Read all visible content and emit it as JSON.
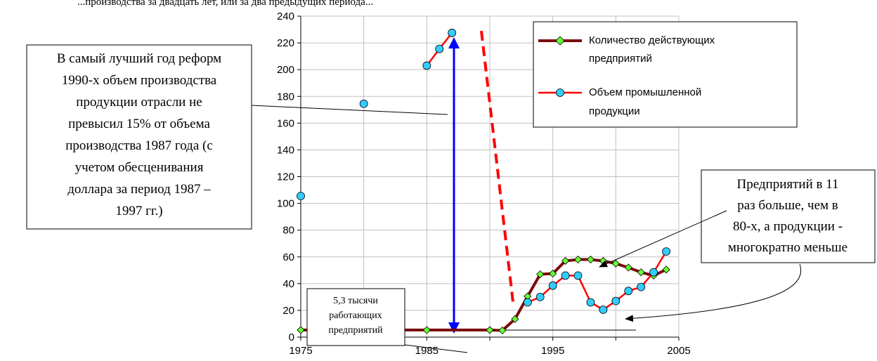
{
  "top_text": "...производства за двадцать лет, или за два предыдущих периода...",
  "chart_data": {
    "type": "line",
    "xlim": [
      1975,
      2005
    ],
    "ylim": [
      0,
      240
    ],
    "x_ticks": [
      1975,
      1985,
      1995,
      2005
    ],
    "y_ticks": [
      0,
      20,
      40,
      60,
      80,
      100,
      120,
      140,
      160,
      180,
      200,
      220,
      240
    ],
    "grid": true,
    "legend_position": "top-right",
    "series": [
      {
        "name": "Количество действующих предприятий",
        "color": "#7b0b0b",
        "marker": "diamond",
        "marker_color": "#66ff33",
        "x": [
          1975,
          1980,
          1985,
          1990,
          1991,
          1992,
          1993,
          1994,
          1995,
          1996,
          1997,
          1998,
          1999,
          2000,
          2001,
          2002,
          2003,
          2004
        ],
        "y": [
          5.3,
          5.3,
          5.3,
          5.3,
          5,
          13.5,
          30.5,
          47,
          47.5,
          57,
          58,
          58,
          57,
          55,
          52,
          48.5,
          46,
          50.5
        ]
      },
      {
        "name": "Объем промышленной продукции",
        "color": "#ff0000",
        "marker": "circle",
        "marker_color": "#33ccff",
        "x": [
          1975,
          1980,
          1985,
          1986,
          1987,
          1993,
          1994,
          1995,
          1996,
          1997,
          1998,
          1999,
          2000,
          2001,
          2002,
          2003,
          2004
        ],
        "y": [
          105.5,
          174.5,
          203,
          215.5,
          227.5,
          26,
          30,
          38.5,
          46,
          46,
          26,
          20.5,
          27,
          34.5,
          37.5,
          48.5,
          64
        ]
      }
    ]
  },
  "annotations": {
    "left_box": [
      "В самый лучший год реформ",
      "1990-х объем производства",
      "продукции  отрасли не",
      "превысил 15% от объема",
      "производства 1987 года (с",
      "учетом обесценивания",
      "доллара за период 1987 –",
      "1997 гг.)"
    ],
    "small_box": [
      "5,3 тысячи",
      "работающих",
      "предприятий"
    ],
    "right_box": [
      "Предприятий в 11",
      "раз больше, чем в",
      "80-х, а продукции  -",
      "многократно меньше"
    ]
  },
  "colors": {
    "arrow_blue": "#0000ff",
    "dash_red": "#ff0000",
    "grid": "#c0c0c0"
  }
}
